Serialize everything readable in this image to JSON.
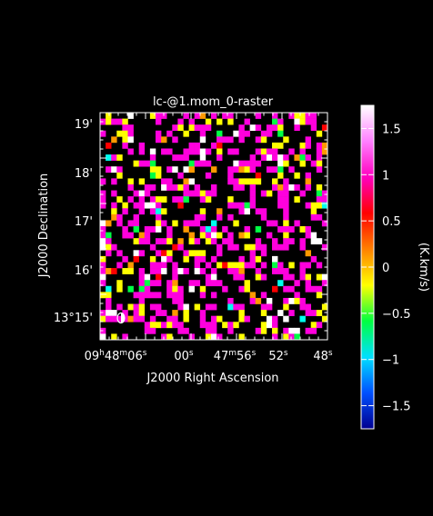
{
  "title": "lc-@1.mom_0-raster",
  "axes": {
    "x_label": "J2000 Right Ascension",
    "y_label": "J2000 Declination",
    "x_ticks": [
      {
        "h": "09",
        "hs": "h",
        "m": "48",
        "ms": "m",
        "s": "06",
        "ss": "s"
      },
      {
        "h": "",
        "hs": "",
        "m": "",
        "ms": "",
        "s": "00",
        "ss": "s"
      },
      {
        "h": "",
        "hs": "",
        "m": "47",
        "ms": "m",
        "s": "56",
        "ss": "s"
      },
      {
        "h": "",
        "hs": "",
        "m": "",
        "ms": "",
        "s": "52",
        "ss": "s"
      },
      {
        "h": "",
        "hs": "",
        "m": "",
        "ms": "",
        "s": "48",
        "ss": "s"
      }
    ],
    "y_ticks": [
      "13°15'",
      "16'",
      "17'",
      "18'",
      "19'"
    ]
  },
  "colorbar": {
    "label": "(K.km/s)",
    "ticks": [
      "1.5",
      "1",
      "0.5",
      "0",
      "−0.5",
      "−1",
      "−1.5"
    ],
    "tick_values": [
      1.5,
      1,
      0.5,
      0,
      -0.5,
      -1,
      -1.5
    ],
    "range": [
      -1.75,
      1.75
    ],
    "colors": [
      "#000090",
      "#0050ff",
      "#00e0ff",
      "#00ff40",
      "#ffff00",
      "#ff8000",
      "#ff0000",
      "#ff00c0",
      "#ff80ff",
      "#ffffff"
    ]
  },
  "image": {
    "grid_cols": 41,
    "grid_rows": 38,
    "fill_fraction": 0.42,
    "palette_weights": {
      "#ff00dd": 0.62,
      "#ffff00": 0.2,
      "#ffffff": 0.07,
      "#ff9900": 0.04,
      "#00ff44": 0.03,
      "#00ffee": 0.02,
      "#ff0000": 0.02
    }
  }
}
